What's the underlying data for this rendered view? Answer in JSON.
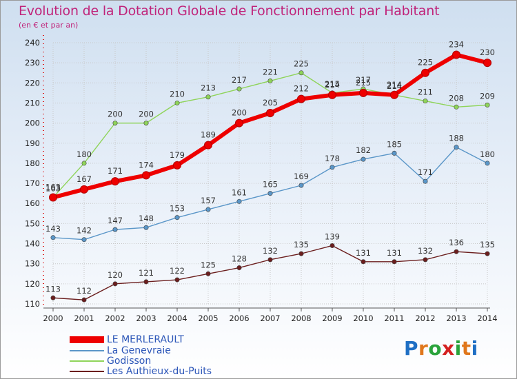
{
  "chart_data": {
    "type": "line",
    "title": "Evolution de la Dotation Globale de Fonctionnement par Habitant",
    "subtitle": "(en € et par an)",
    "xlabel": "",
    "ylabel": "",
    "ylim": [
      110,
      240
    ],
    "yticks": [
      110,
      120,
      130,
      140,
      150,
      160,
      170,
      180,
      190,
      200,
      210,
      220,
      230,
      240
    ],
    "categories": [
      "2000",
      "2001",
      "2002",
      "2003",
      "2004",
      "2005",
      "2006",
      "2007",
      "2008",
      "2009",
      "2010",
      "2011",
      "2012",
      "2013",
      "2014"
    ],
    "legend_position": "bottom-left",
    "series": [
      {
        "name": "Les Authieux-du-Puits",
        "color": "#6b1e1e",
        "values": [
          113,
          112,
          120,
          121,
          122,
          125,
          128,
          132,
          135,
          139,
          131,
          131,
          132,
          136,
          135
        ]
      },
      {
        "name": "La Genevraie",
        "color": "#5a96c8",
        "values": [
          143,
          142,
          147,
          148,
          153,
          157,
          161,
          165,
          169,
          178,
          182,
          185,
          171,
          188,
          180
        ]
      },
      {
        "name": "Godisson",
        "color": "#8fd45a",
        "values": [
          163,
          180,
          200,
          200,
          210,
          213,
          217,
          221,
          225,
          215,
          217,
          214,
          211,
          208,
          209
        ]
      },
      {
        "name": "LE MERLERAULT",
        "color": "#ee0000",
        "values": [
          163,
          167,
          171,
          174,
          179,
          189,
          200,
          205,
          212,
          214,
          215,
          214,
          225,
          234,
          230
        ]
      }
    ]
  },
  "legend": {
    "items": [
      {
        "label": "LE MERLERAULT",
        "color": "#ee0000"
      },
      {
        "label": "La Genevraie",
        "color": "#5a96c8"
      },
      {
        "label": "Godisson",
        "color": "#8fd45a"
      },
      {
        "label": "Les Authieux-du-Puits",
        "color": "#6b1e1e"
      }
    ]
  },
  "logo": {
    "letters": [
      "P",
      "r",
      "o",
      "x",
      "i",
      "t",
      "i"
    ],
    "colors": [
      "#1f6fc4",
      "#e0771c",
      "#2aa33b",
      "#d42020",
      "#2aa33b",
      "#e0771c",
      "#1f6fc4"
    ]
  }
}
